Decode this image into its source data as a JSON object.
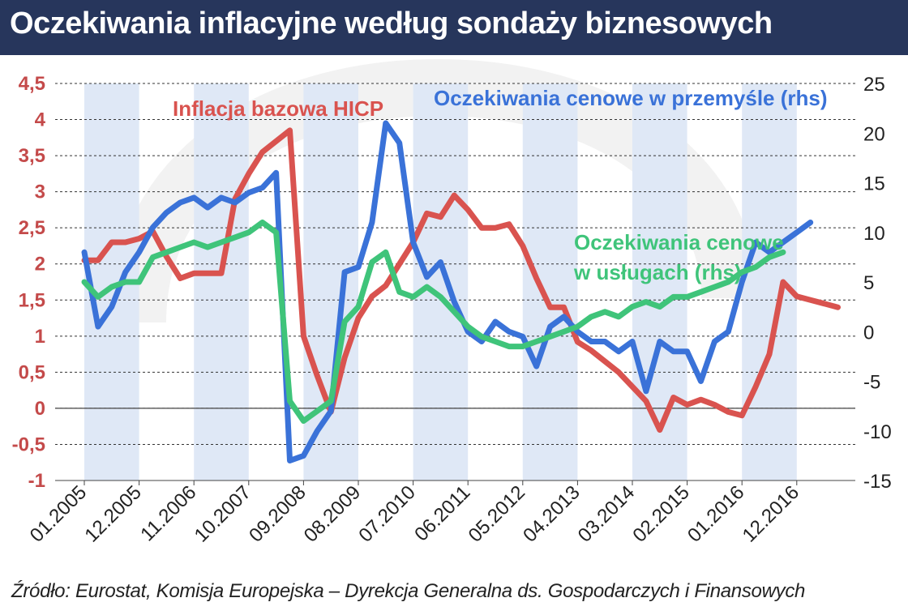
{
  "title": "Oczekiwania inflacyjne według sondaży biznesowych",
  "source": "Źródło: Eurostat, Komisja Europejska – Dyrekcja Generalna ds. Gospodarczych i Finansowych",
  "colors": {
    "title_bg": "#27365c",
    "hicp": "#d9534f",
    "industry": "#3a72d8",
    "services": "#3fc47a",
    "left_axis_text": "#c44a4a",
    "band": "#dfe8f6"
  },
  "chart_data": {
    "type": "line",
    "x_tick_labels": [
      "01.2005",
      "12.2005",
      "11.2006",
      "10.2007",
      "09.2008",
      "08.2009",
      "07.2010",
      "06.2011",
      "05.2012",
      "04.2013",
      "03.2014",
      "02.2015",
      "01.2016",
      "12.2016"
    ],
    "y_left": {
      "range": [
        -1,
        4.5
      ],
      "ticks": [
        "-1",
        "-0,5",
        "0",
        "0,5",
        "1",
        "1,5",
        "2",
        "2,5",
        "3",
        "3,5",
        "4",
        "4,5"
      ]
    },
    "y_right": {
      "range": [
        -15,
        25
      ],
      "ticks": [
        "-15",
        "-10",
        "-5",
        "0",
        "5",
        "10",
        "15",
        "20",
        "25"
      ]
    },
    "series": [
      {
        "name": "Inflacja bazowa HICP",
        "axis": "left",
        "labels": [
          "Inflacja bazowa HICP"
        ],
        "values": [
          2.05,
          2.05,
          2.3,
          2.3,
          2.35,
          2.45,
          2.1,
          1.8,
          1.87,
          1.87,
          1.87,
          2.9,
          3.25,
          3.55,
          3.7,
          3.85,
          1.0,
          0.45,
          -0.05,
          0.7,
          1.25,
          1.55,
          1.7,
          2.0,
          2.3,
          2.7,
          2.65,
          2.95,
          2.75,
          2.5,
          2.5,
          2.55,
          2.25,
          1.8,
          1.4,
          1.4,
          0.92,
          0.8,
          0.65,
          0.5,
          0.3,
          0.1,
          -0.3,
          0.15,
          0.05,
          0.12,
          0.05,
          -0.05,
          -0.1,
          0.3,
          0.75,
          1.75,
          1.55,
          1.5,
          1.45,
          1.4
        ]
      },
      {
        "name": "Oczekiwania cenowe w przemyśle (rhs)",
        "axis": "right",
        "labels": [
          "Oczekiwania cenowe w przemyśle (rhs)"
        ],
        "values": [
          8.0,
          0.5,
          2.5,
          6.0,
          8.0,
          10.5,
          12.0,
          13.0,
          13.5,
          12.5,
          13.5,
          13.0,
          14.0,
          14.5,
          16.0,
          -13.0,
          -12.5,
          -10.0,
          -8.0,
          6.0,
          6.5,
          11.0,
          21.0,
          19.0,
          9.0,
          5.5,
          7.0,
          3.0,
          0.0,
          -1.0,
          1.0,
          0.0,
          -0.5,
          -3.5,
          0.5,
          1.5,
          0.0,
          -1.0,
          -1.0,
          -2.0,
          -1.0,
          -6.0,
          -1.0,
          -2.0,
          -2.0,
          -5.0,
          -1.0,
          0.0,
          5.0,
          9.0,
          8.0,
          9.0,
          10.0,
          11.0
        ]
      },
      {
        "name": "Oczekiwania cenowe w usługach (rhs)",
        "axis": "right",
        "labels": [
          "Oczekiwania cenowe",
          "w usługach (rhs)"
        ],
        "values": [
          5.0,
          3.5,
          4.5,
          5.0,
          5.0,
          7.5,
          8.0,
          8.5,
          9.0,
          8.5,
          9.0,
          9.5,
          10.0,
          11.0,
          10.0,
          -7.0,
          -9.0,
          -8.0,
          -7.0,
          1.0,
          2.5,
          7.0,
          8.0,
          4.0,
          3.5,
          4.5,
          3.5,
          2.0,
          0.5,
          -0.5,
          -1.0,
          -1.5,
          -1.5,
          -1.0,
          -0.5,
          0.0,
          0.5,
          1.5,
          2.0,
          1.5,
          2.5,
          3.0,
          2.5,
          3.5,
          3.5,
          4.0,
          4.5,
          5.0,
          6.0,
          6.5,
          7.5,
          8.0
        ]
      }
    ],
    "grid": true,
    "shaded_bands": true
  }
}
